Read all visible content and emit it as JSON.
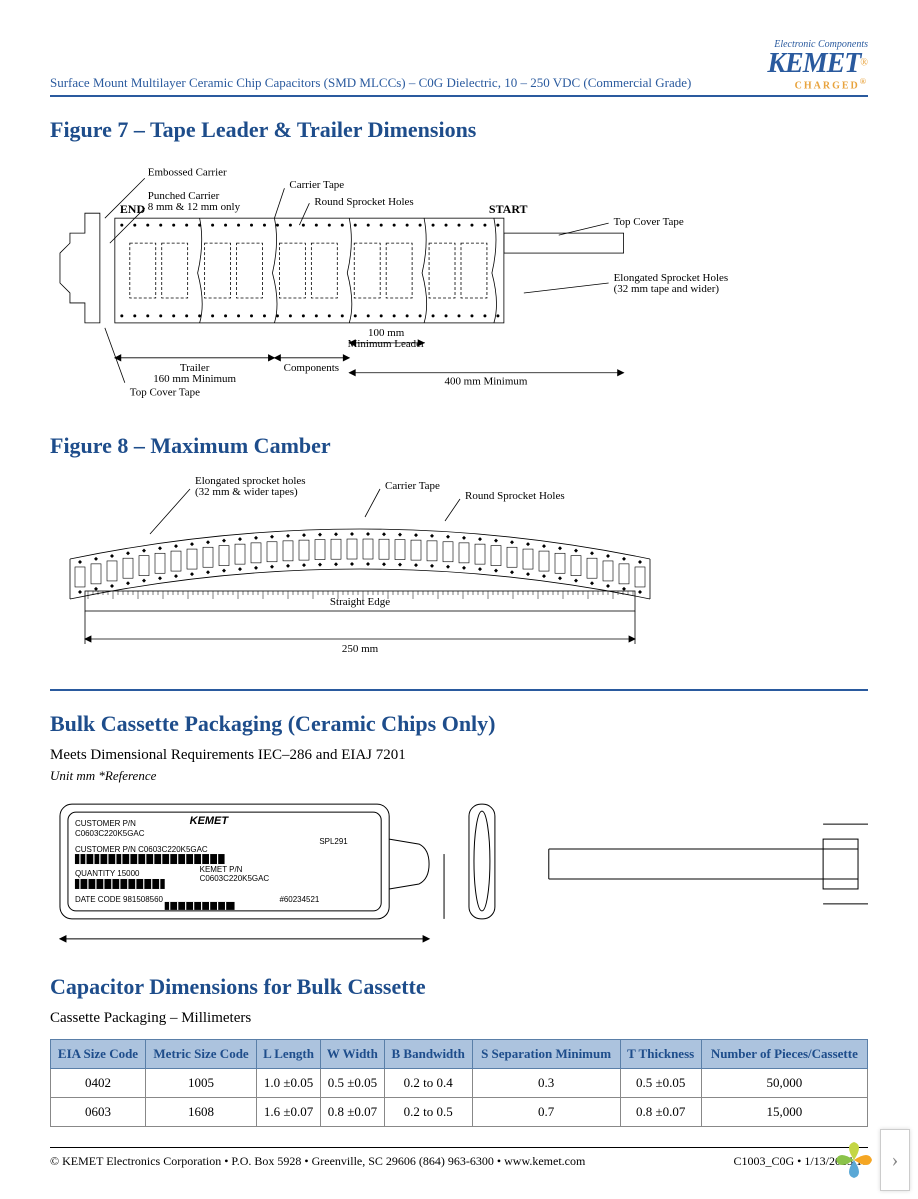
{
  "colors": {
    "blue": "#2a5a9e",
    "title_blue": "#1e4d8b",
    "th_bg": "#acc3de",
    "orange": "#e8a33d"
  },
  "header": {
    "doc_title": "Surface Mount Multilayer Ceramic Chip Capacitors (SMD MLCCs) – C0G Dielectric, 10 – 250 VDC (Commercial Grade)",
    "logo_small": "Electronic Components",
    "logo_main": "KEMET",
    "logo_charged": "CHARGED"
  },
  "fig7": {
    "title": "Figure 7 – Tape Leader & Trailer Dimensions",
    "labels": {
      "embossed": "Embossed Carrier",
      "punched": "Punched Carrier\n8 mm & 12 mm only",
      "end": "END",
      "carrier_tape": "Carrier Tape",
      "round_holes": "Round Sprocket Holes",
      "start": "START",
      "top_cover": "Top Cover Tape",
      "elongated": "Elongated Sprocket Holes\n(32 mm tape and wider)",
      "trailer": "Trailer\n160 mm Minimum",
      "components": "Components",
      "leader_100": "100 mm\nMinimum Leader",
      "leader_400": "400 mm Minimum",
      "top_cover2": "Top Cover Tape"
    }
  },
  "fig8": {
    "title": "Figure 8 – Maximum Camber",
    "labels": {
      "elongated": "Elongated sprocket holes\n(32 mm & wider tapes)",
      "carrier_tape": "Carrier Tape",
      "round_holes": "Round Sprocket Holes",
      "straight": "Straight Edge",
      "dim_250": "250 mm"
    }
  },
  "bulk": {
    "title": "Bulk Cassette Packaging (Ceramic Chips Only)",
    "req": "Meets Dimensional Requirements IEC–286 and EIAJ 7201",
    "unit": "Unit mm *Reference",
    "cassette_labels": {
      "customer_pn": "CUSTOMER P/N",
      "pn1": "C0603C220K5GAC",
      "kemet": "KEMET",
      "desc": "CUSTOMER P/N C0603C220K5GAC",
      "spl": "SPL291",
      "qty": "QUANTITY 15000",
      "kemet_pn": "KEMET P/N\nC0603C220K5GAC",
      "date": "DATE CODE 981508560",
      "batch": "#60234521"
    }
  },
  "dim_section": {
    "title": "Capacitor Dimensions for Bulk Cassette",
    "subtitle": "Cassette Packaging – Millimeters",
    "columns": [
      "EIA Size Code",
      "Metric Size Code",
      "L Length",
      "W Width",
      "B Bandwidth",
      "S Separation Minimum",
      "T Thickness",
      "Number of Pieces/Cassette"
    ],
    "rows": [
      [
        "0402",
        "1005",
        "1.0 ±0.05",
        "0.5 ±0.05",
        "0.2 to 0.4",
        "0.3",
        "0.5 ±0.05",
        "50,000"
      ],
      [
        "0603",
        "1608",
        "1.6 ±0.07",
        "0.8 ±0.07",
        "0.2 to 0.5",
        "0.7",
        "0.8 ±0.07",
        "15,000"
      ]
    ]
  },
  "footer": {
    "left": "© KEMET Electronics Corporation • P.O. Box 5928 • Greenville, SC 29606 (864) 963-6300 • www.kemet.com",
    "right": "C1003_C0G • 1/13/2015 17"
  }
}
